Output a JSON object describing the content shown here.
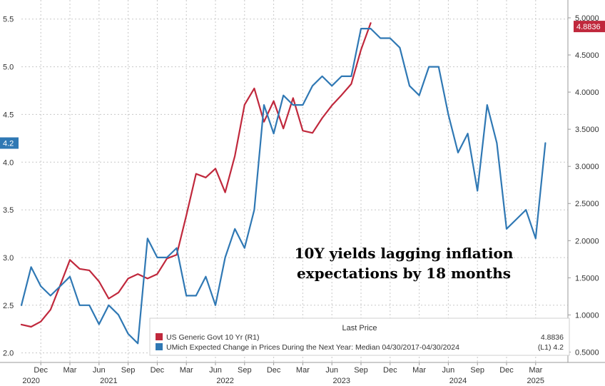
{
  "chart_data": {
    "type": "line",
    "title": "",
    "annotation": [
      "10Y yields lagging inflation",
      "expectations by 18 months"
    ],
    "left_axis": {
      "ylim": [
        1.9,
        5.7
      ],
      "ticks": [
        2.0,
        2.5,
        3.0,
        3.5,
        4.0,
        4.5,
        5.0,
        5.5
      ],
      "tick_labels": [
        "2.0",
        "2.5",
        "3.0",
        "3.5",
        "4.0",
        "4.5",
        "5.0",
        "5.5"
      ]
    },
    "right_axis": {
      "ylim": [
        0.36,
        5.24
      ],
      "ticks": [
        0.5,
        1.0,
        1.5,
        2.0,
        2.5,
        3.0,
        3.5,
        4.0,
        4.5,
        5.0
      ],
      "tick_labels": [
        "0.5000",
        "1.0000",
        "1.5000",
        "2.0000",
        "2.5000",
        "3.0000",
        "3.5000",
        "4.0000",
        "4.5000",
        "5.0000"
      ]
    },
    "x_axis": {
      "month_labels": [
        {
          "label": "Dec",
          "index": 2
        },
        {
          "label": "Mar",
          "index": 5
        },
        {
          "label": "Jun",
          "index": 8
        },
        {
          "label": "Sep",
          "index": 11
        },
        {
          "label": "Dec",
          "index": 14
        },
        {
          "label": "Mar",
          "index": 17
        },
        {
          "label": "Jun",
          "index": 20
        },
        {
          "label": "Sep",
          "index": 23
        },
        {
          "label": "Dec",
          "index": 26
        },
        {
          "label": "Mar",
          "index": 29
        },
        {
          "label": "Jun",
          "index": 32
        },
        {
          "label": "Sep",
          "index": 35
        },
        {
          "label": "Dec",
          "index": 38
        },
        {
          "label": "Mar",
          "index": 41
        },
        {
          "label": "Jun",
          "index": 44
        },
        {
          "label": "Sep",
          "index": 47
        },
        {
          "label": "Dec",
          "index": 50
        },
        {
          "label": "Mar",
          "index": 53
        }
      ],
      "year_labels": [
        {
          "label": "2020",
          "index": 1
        },
        {
          "label": "2021",
          "index": 9
        },
        {
          "label": "2022",
          "index": 21
        },
        {
          "label": "2023",
          "index": 33
        },
        {
          "label": "2024",
          "index": 45
        },
        {
          "label": "2025",
          "index": 53
        }
      ]
    },
    "series": [
      {
        "name": "US Generic Govt 10 Yr  (R1)",
        "axis": "right",
        "color": "#c0283c",
        "start_index": 0,
        "values": [
          0.87,
          0.84,
          0.91,
          1.07,
          1.4,
          1.74,
          1.62,
          1.6,
          1.45,
          1.22,
          1.3,
          1.49,
          1.55,
          1.49,
          1.55,
          1.76,
          1.81,
          2.34,
          2.9,
          2.85,
          2.97,
          2.65,
          3.14,
          3.83,
          4.05,
          3.6,
          3.88,
          3.51,
          3.92,
          3.48,
          3.45,
          3.65,
          3.82,
          3.96,
          4.11,
          4.57,
          4.93
        ]
      },
      {
        "name": "UMich Expected Change in Prices During the Next Year: Median 04/30/2017-04/30/2024",
        "axis": "left",
        "color": "#2f78b4",
        "start_index": 0,
        "values": [
          2.5,
          2.9,
          2.7,
          2.6,
          2.7,
          2.8,
          2.5,
          2.5,
          2.3,
          2.5,
          2.4,
          2.2,
          2.1,
          3.2,
          3.0,
          3.0,
          3.1,
          2.6,
          2.6,
          2.8,
          2.5,
          3.0,
          3.3,
          3.1,
          3.5,
          4.6,
          4.3,
          4.7,
          4.6,
          4.6,
          4.8,
          4.9,
          4.8,
          4.9,
          4.9,
          5.4,
          5.4,
          5.3,
          5.3,
          5.2,
          4.8,
          4.7,
          5.0,
          5.0,
          4.5,
          4.1,
          4.3,
          3.7,
          4.6,
          4.2,
          3.3,
          3.4,
          3.5,
          3.2,
          4.2
        ]
      }
    ],
    "legend": {
      "header": "Last Price",
      "position": "bottom-right",
      "entries": [
        {
          "label": "US Generic Govt 10 Yr  (R1)",
          "value": "4.8836",
          "color": "#c0283c"
        },
        {
          "label": "UMich Expected Change in Prices During the Next Year: Median 04/30/2017-04/30/2024",
          "value": "(L1) 4.2",
          "color": "#2f78b4"
        }
      ]
    },
    "last_value_badges": {
      "left": {
        "text": "4.2",
        "value": 4.2,
        "color": "#2f78b4"
      },
      "right": {
        "text": "4.8836",
        "value": 4.8836,
        "color": "#c0283c"
      }
    },
    "grid": true
  }
}
